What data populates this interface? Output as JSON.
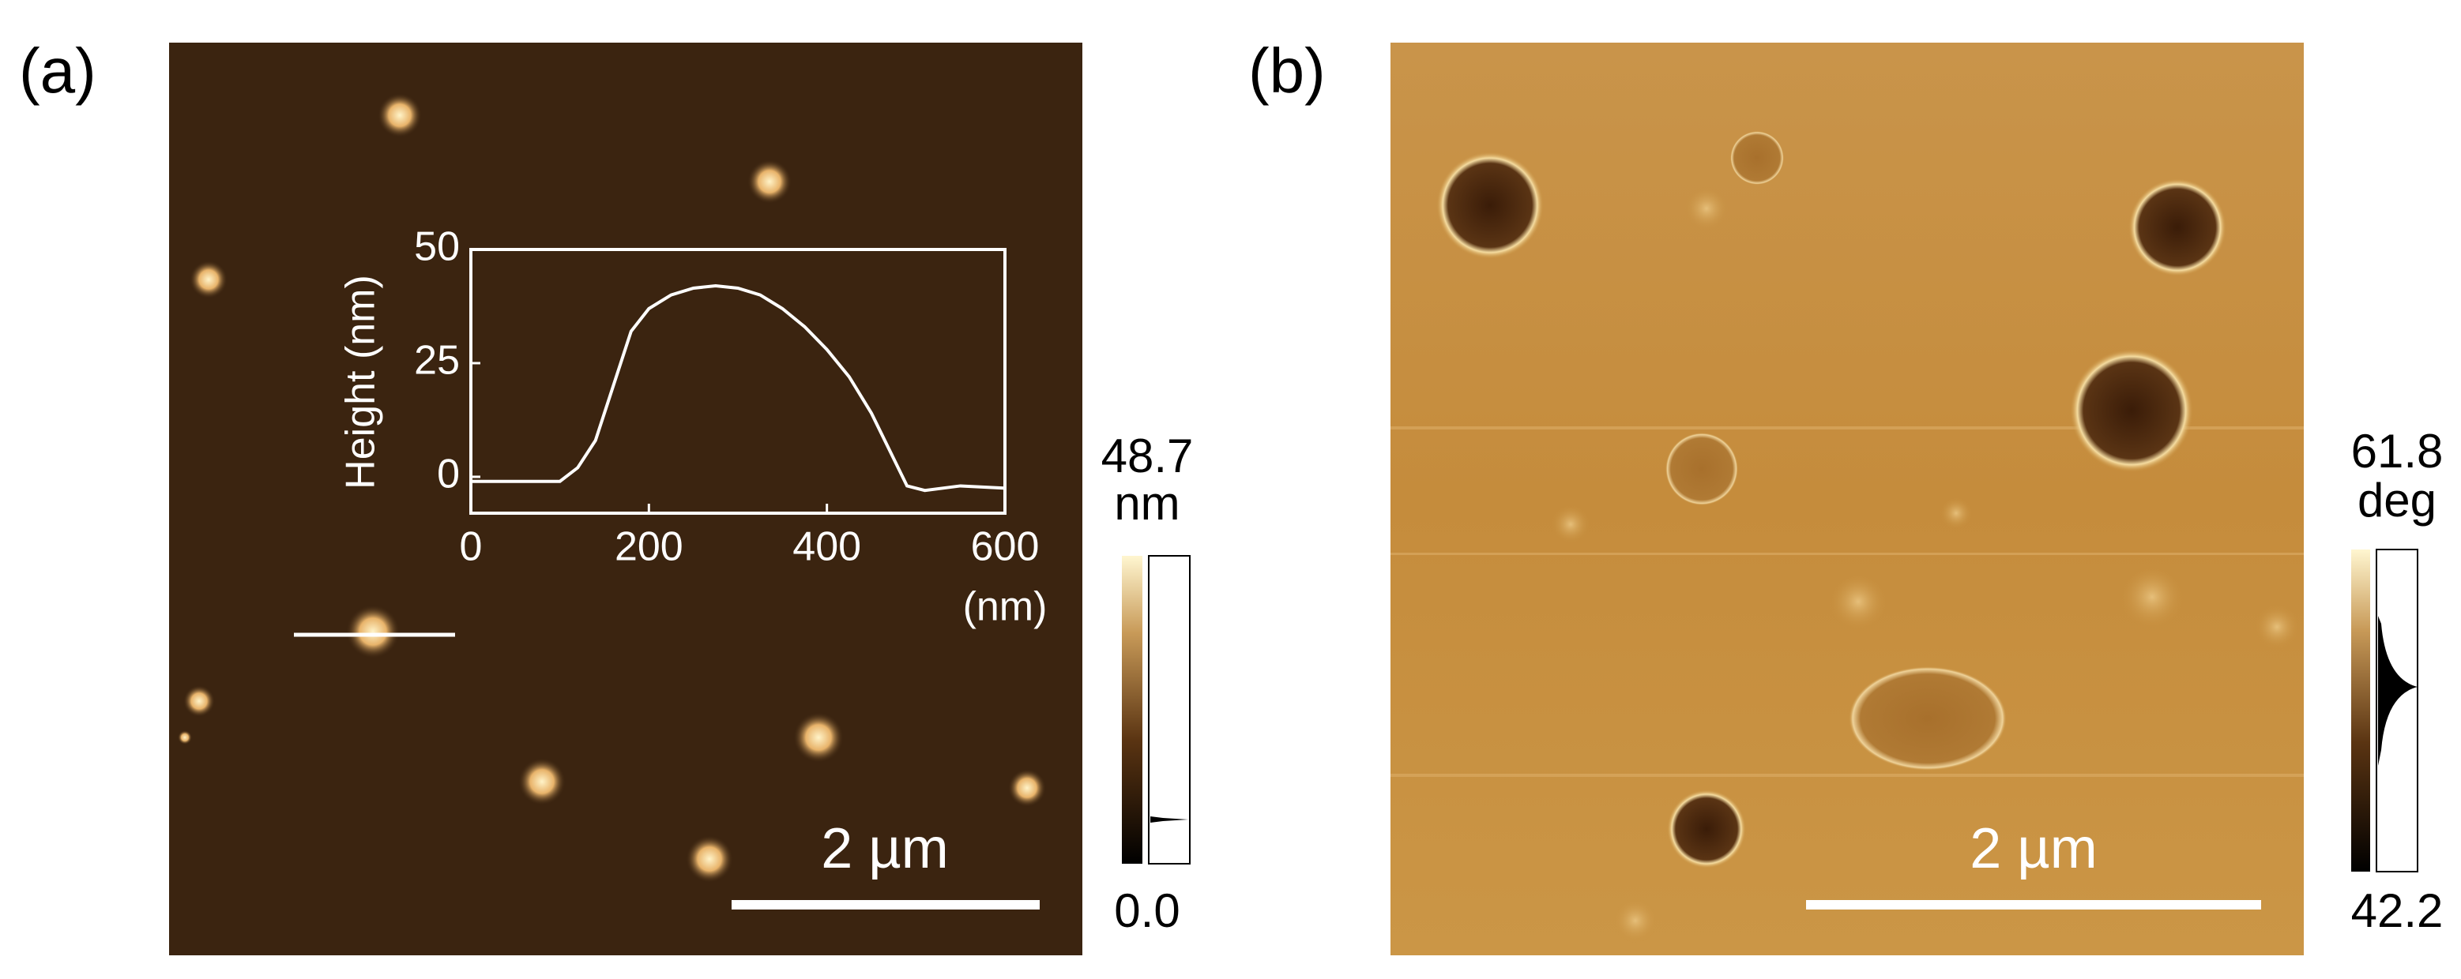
{
  "panels": [
    {
      "label": "(a)",
      "scale_bar": "2 µm",
      "colorbar": {
        "max": "48.7",
        "unit": "nm",
        "min": "0.0"
      }
    },
    {
      "label": "(b)",
      "scale_bar": "2 µm",
      "colorbar": {
        "max": "61.8",
        "unit": "deg",
        "min": "42.2"
      }
    }
  ],
  "chart_data": {
    "type": "line",
    "xlabel": "(nm)",
    "ylabel": "Height (nm)",
    "x": [
      0,
      50,
      100,
      120,
      140,
      160,
      180,
      200,
      225,
      250,
      275,
      300,
      325,
      350,
      375,
      400,
      425,
      450,
      470,
      490,
      510,
      550,
      600
    ],
    "series": [
      {
        "color": "#ffffff",
        "values": [
          -1,
          -1,
          -1,
          2,
          8,
          20,
          32,
          37,
          40,
          41.5,
          42,
          41.5,
          40,
          37,
          33,
          28,
          22,
          14,
          6,
          -2,
          -3,
          -2,
          -2.5
        ]
      }
    ],
    "xlim": [
      0,
      600
    ],
    "ylim": [
      -8,
      50
    ],
    "xticks": [
      0,
      200,
      400,
      600
    ],
    "yticks": [
      0,
      25,
      50
    ]
  }
}
